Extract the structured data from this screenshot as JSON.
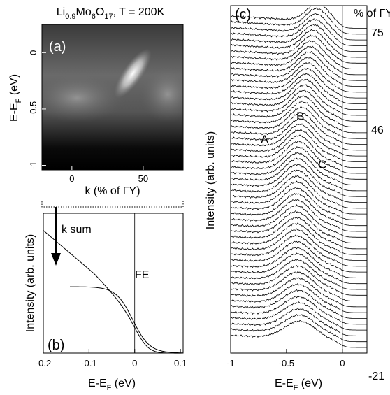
{
  "panel_a": {
    "title": [
      "Li",
      "0.9",
      "Mo",
      "6",
      "O",
      "17",
      ", T = 200K"
    ],
    "label": "(a)",
    "ylabel": [
      "E-E",
      "F",
      " (eV)"
    ],
    "xlabel": "k (% of ΓY)",
    "xlim": [
      -21,
      78
    ],
    "ylim": [
      -1.04,
      0.25
    ],
    "xticks": [
      0,
      50
    ],
    "yticks": [
      0,
      -0.5,
      -1
    ],
    "annotation": "k sum"
  },
  "panel_b": {
    "label": "(b)",
    "annotation": "FE",
    "ylabel": "Intensity (arb. units)",
    "xlabel": [
      "E-E",
      "F",
      " (eV)"
    ],
    "xlim": [
      -0.2,
      0.106
    ],
    "xticks": [
      -0.2,
      -0.1,
      0,
      0.1
    ]
  },
  "panel_c": {
    "label": "(c)",
    "ylabel": "Intensity (arb. units)",
    "xlabel": [
      "E-E",
      "F",
      " (eV)"
    ],
    "xlim": [
      -1,
      0.22
    ],
    "xticks": [
      -1,
      -0.5,
      0
    ],
    "peaks": [
      "A",
      "B",
      "C"
    ],
    "right_header": "% of ΓY",
    "right_labels": [
      "75",
      "46",
      "-21"
    ]
  }
}
